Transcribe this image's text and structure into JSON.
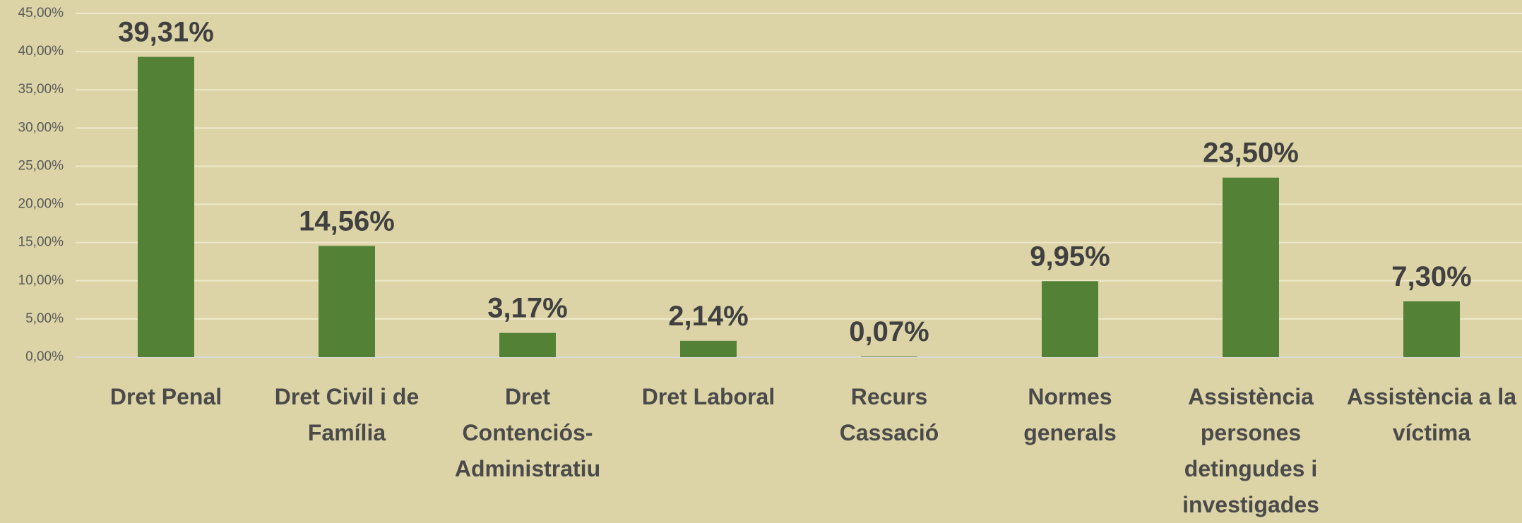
{
  "chart_data": {
    "type": "bar",
    "categories": [
      "Dret Penal",
      "Dret Civil i de Família",
      "Dret Contenciós-Administratiu",
      "Dret Laboral",
      "Recurs Cassació",
      "Normes generals",
      "Assistència persones detingudes i investigades",
      "Assistència a la víctima"
    ],
    "values": [
      39.31,
      14.56,
      3.17,
      2.14,
      0.07,
      9.95,
      23.5,
      7.3
    ],
    "value_labels": [
      "39,31%",
      "14,56%",
      "3,17%",
      "2,14%",
      "0,07%",
      "9,95%",
      "23,50%",
      "7,30%"
    ],
    "color": "#538135",
    "ylim": [
      0,
      45
    ],
    "yticks": [
      {
        "value": 0,
        "label": "0,00%"
      },
      {
        "value": 5,
        "label": "5,00%"
      },
      {
        "value": 10,
        "label": "10,00%"
      },
      {
        "value": 15,
        "label": "15,00%"
      },
      {
        "value": 20,
        "label": "20,00%"
      },
      {
        "value": 25,
        "label": "25,00%"
      },
      {
        "value": 30,
        "label": "30,00%"
      },
      {
        "value": 35,
        "label": "35,00%"
      },
      {
        "value": 40,
        "label": "40,00%"
      },
      {
        "value": 45,
        "label": "45,00%"
      }
    ],
    "grid": true
  }
}
